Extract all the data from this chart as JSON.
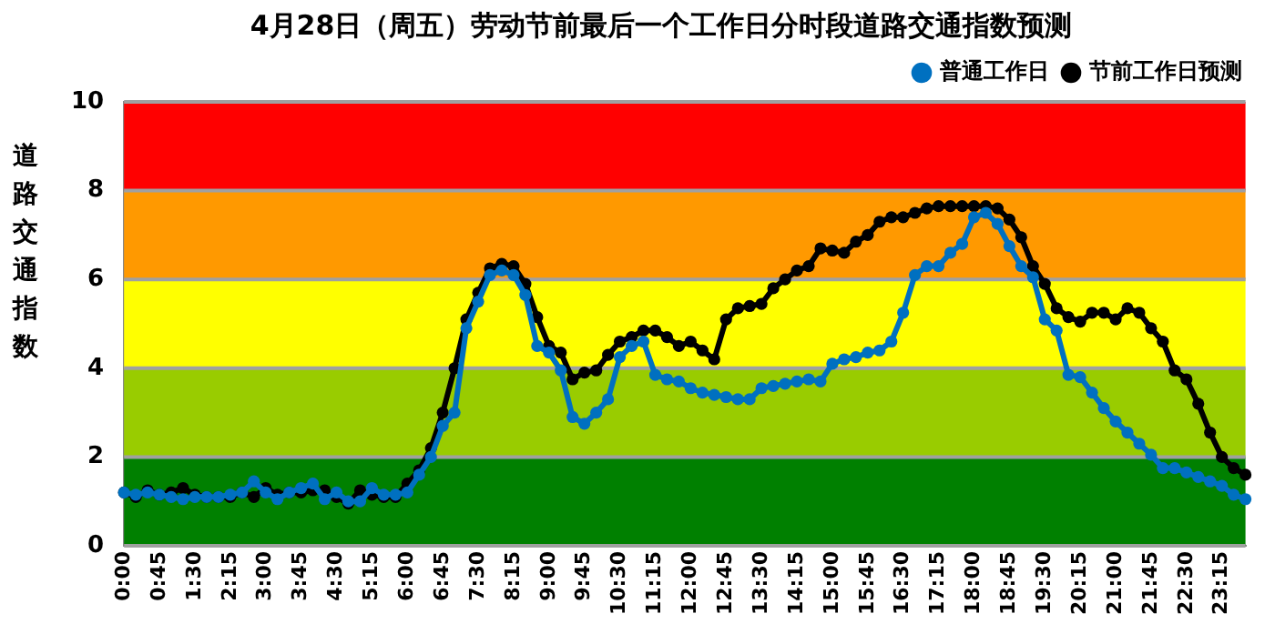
{
  "chart_data": {
    "type": "line",
    "title": "4月28日（周五）劳动节前最后一个工作日分时段道路交通指数预测",
    "ylabel": "道路交通指数",
    "categories": [
      "0:00",
      null,
      null,
      "0:45",
      null,
      null,
      "1:30",
      null,
      null,
      "2:15",
      null,
      null,
      "3:00",
      null,
      null,
      "3:45",
      null,
      null,
      "4:30",
      null,
      null,
      "5:15",
      null,
      null,
      "6:00",
      null,
      null,
      "6:45",
      null,
      null,
      "7:30",
      null,
      null,
      "8:15",
      null,
      null,
      "9:00",
      null,
      null,
      "9:45",
      null,
      null,
      "10:30",
      null,
      null,
      "11:15",
      null,
      null,
      "12:00",
      null,
      null,
      "12:45",
      null,
      null,
      "13:30",
      null,
      null,
      "14:15",
      null,
      null,
      "15:00",
      null,
      null,
      "15:45",
      null,
      null,
      "16:30",
      null,
      null,
      "17:15",
      null,
      null,
      "18:00",
      null,
      null,
      "18:45",
      null,
      null,
      "19:30",
      null,
      null,
      "20:15",
      null,
      null,
      "21:00",
      null,
      null,
      "21:45",
      null,
      null,
      "22:30",
      null,
      null,
      "23:15",
      null,
      null
    ],
    "series": [
      {
        "name": "普通工作日",
        "color": "#0070c0",
        "values": [
          1.2,
          1.15,
          1.2,
          1.15,
          1.1,
          1.05,
          1.1,
          1.1,
          1.1,
          1.15,
          1.2,
          1.45,
          1.2,
          1.05,
          1.2,
          1.3,
          1.4,
          1.05,
          1.2,
          1.0,
          1.0,
          1.3,
          1.15,
          1.15,
          1.2,
          1.6,
          2.0,
          2.7,
          3.0,
          4.9,
          5.5,
          6.1,
          6.2,
          6.1,
          5.65,
          4.5,
          4.35,
          3.95,
          2.9,
          2.75,
          3.0,
          3.3,
          4.25,
          4.5,
          4.6,
          3.85,
          3.75,
          3.7,
          3.55,
          3.45,
          3.4,
          3.35,
          3.3,
          3.3,
          3.55,
          3.6,
          3.65,
          3.7,
          3.75,
          3.7,
          4.1,
          4.2,
          4.25,
          4.35,
          4.4,
          4.6,
          5.25,
          6.1,
          6.3,
          6.3,
          6.6,
          6.8,
          7.4,
          7.5,
          7.25,
          6.75,
          6.3,
          6.05,
          5.1,
          4.85,
          3.85,
          3.8,
          3.45,
          3.1,
          2.8,
          2.55,
          2.3,
          2.05,
          1.75,
          1.75,
          1.65,
          1.55,
          1.45,
          1.35,
          1.15,
          1.05
        ]
      },
      {
        "name": "节前工作日预测",
        "color": "#000000",
        "values": [
          1.2,
          1.1,
          1.25,
          1.15,
          1.2,
          1.3,
          1.15,
          1.1,
          1.1,
          1.1,
          1.2,
          1.1,
          1.3,
          1.15,
          1.2,
          1.2,
          1.25,
          1.25,
          1.1,
          0.95,
          1.25,
          1.15,
          1.1,
          1.1,
          1.4,
          1.7,
          2.2,
          3.0,
          4.0,
          5.1,
          5.7,
          6.25,
          6.35,
          6.3,
          5.9,
          5.15,
          4.5,
          4.35,
          3.75,
          3.9,
          3.95,
          4.3,
          4.6,
          4.7,
          4.85,
          4.85,
          4.7,
          4.5,
          4.6,
          4.4,
          4.2,
          5.1,
          5.35,
          5.4,
          5.45,
          5.8,
          6.0,
          6.2,
          6.3,
          6.7,
          6.65,
          6.6,
          6.85,
          7.0,
          7.3,
          7.4,
          7.4,
          7.5,
          7.6,
          7.65,
          7.65,
          7.65,
          7.65,
          7.65,
          7.6,
          7.35,
          6.95,
          6.3,
          5.9,
          5.35,
          5.15,
          5.05,
          5.25,
          5.25,
          5.1,
          5.35,
          5.25,
          4.9,
          4.6,
          3.95,
          3.75,
          3.2,
          2.55,
          2.0,
          1.75,
          1.6
        ]
      }
    ],
    "ylim": [
      0,
      10
    ],
    "yticks": [
      0,
      2,
      4,
      6,
      8,
      10
    ],
    "grid": "y",
    "legend": "top right",
    "marker": "circle",
    "line_style": "solid",
    "bands": [
      {
        "axis": "y",
        "from": 0,
        "to": 2,
        "color": "#008000"
      },
      {
        "axis": "y",
        "from": 2,
        "to": 4,
        "color": "#99cc00"
      },
      {
        "axis": "y",
        "from": 4,
        "to": 6,
        "color": "#ffff00"
      },
      {
        "axis": "y",
        "from": 6,
        "to": 8,
        "color": "#ff9900"
      },
      {
        "axis": "y",
        "from": 8,
        "to": 10,
        "color": "#ff0000"
      }
    ]
  }
}
